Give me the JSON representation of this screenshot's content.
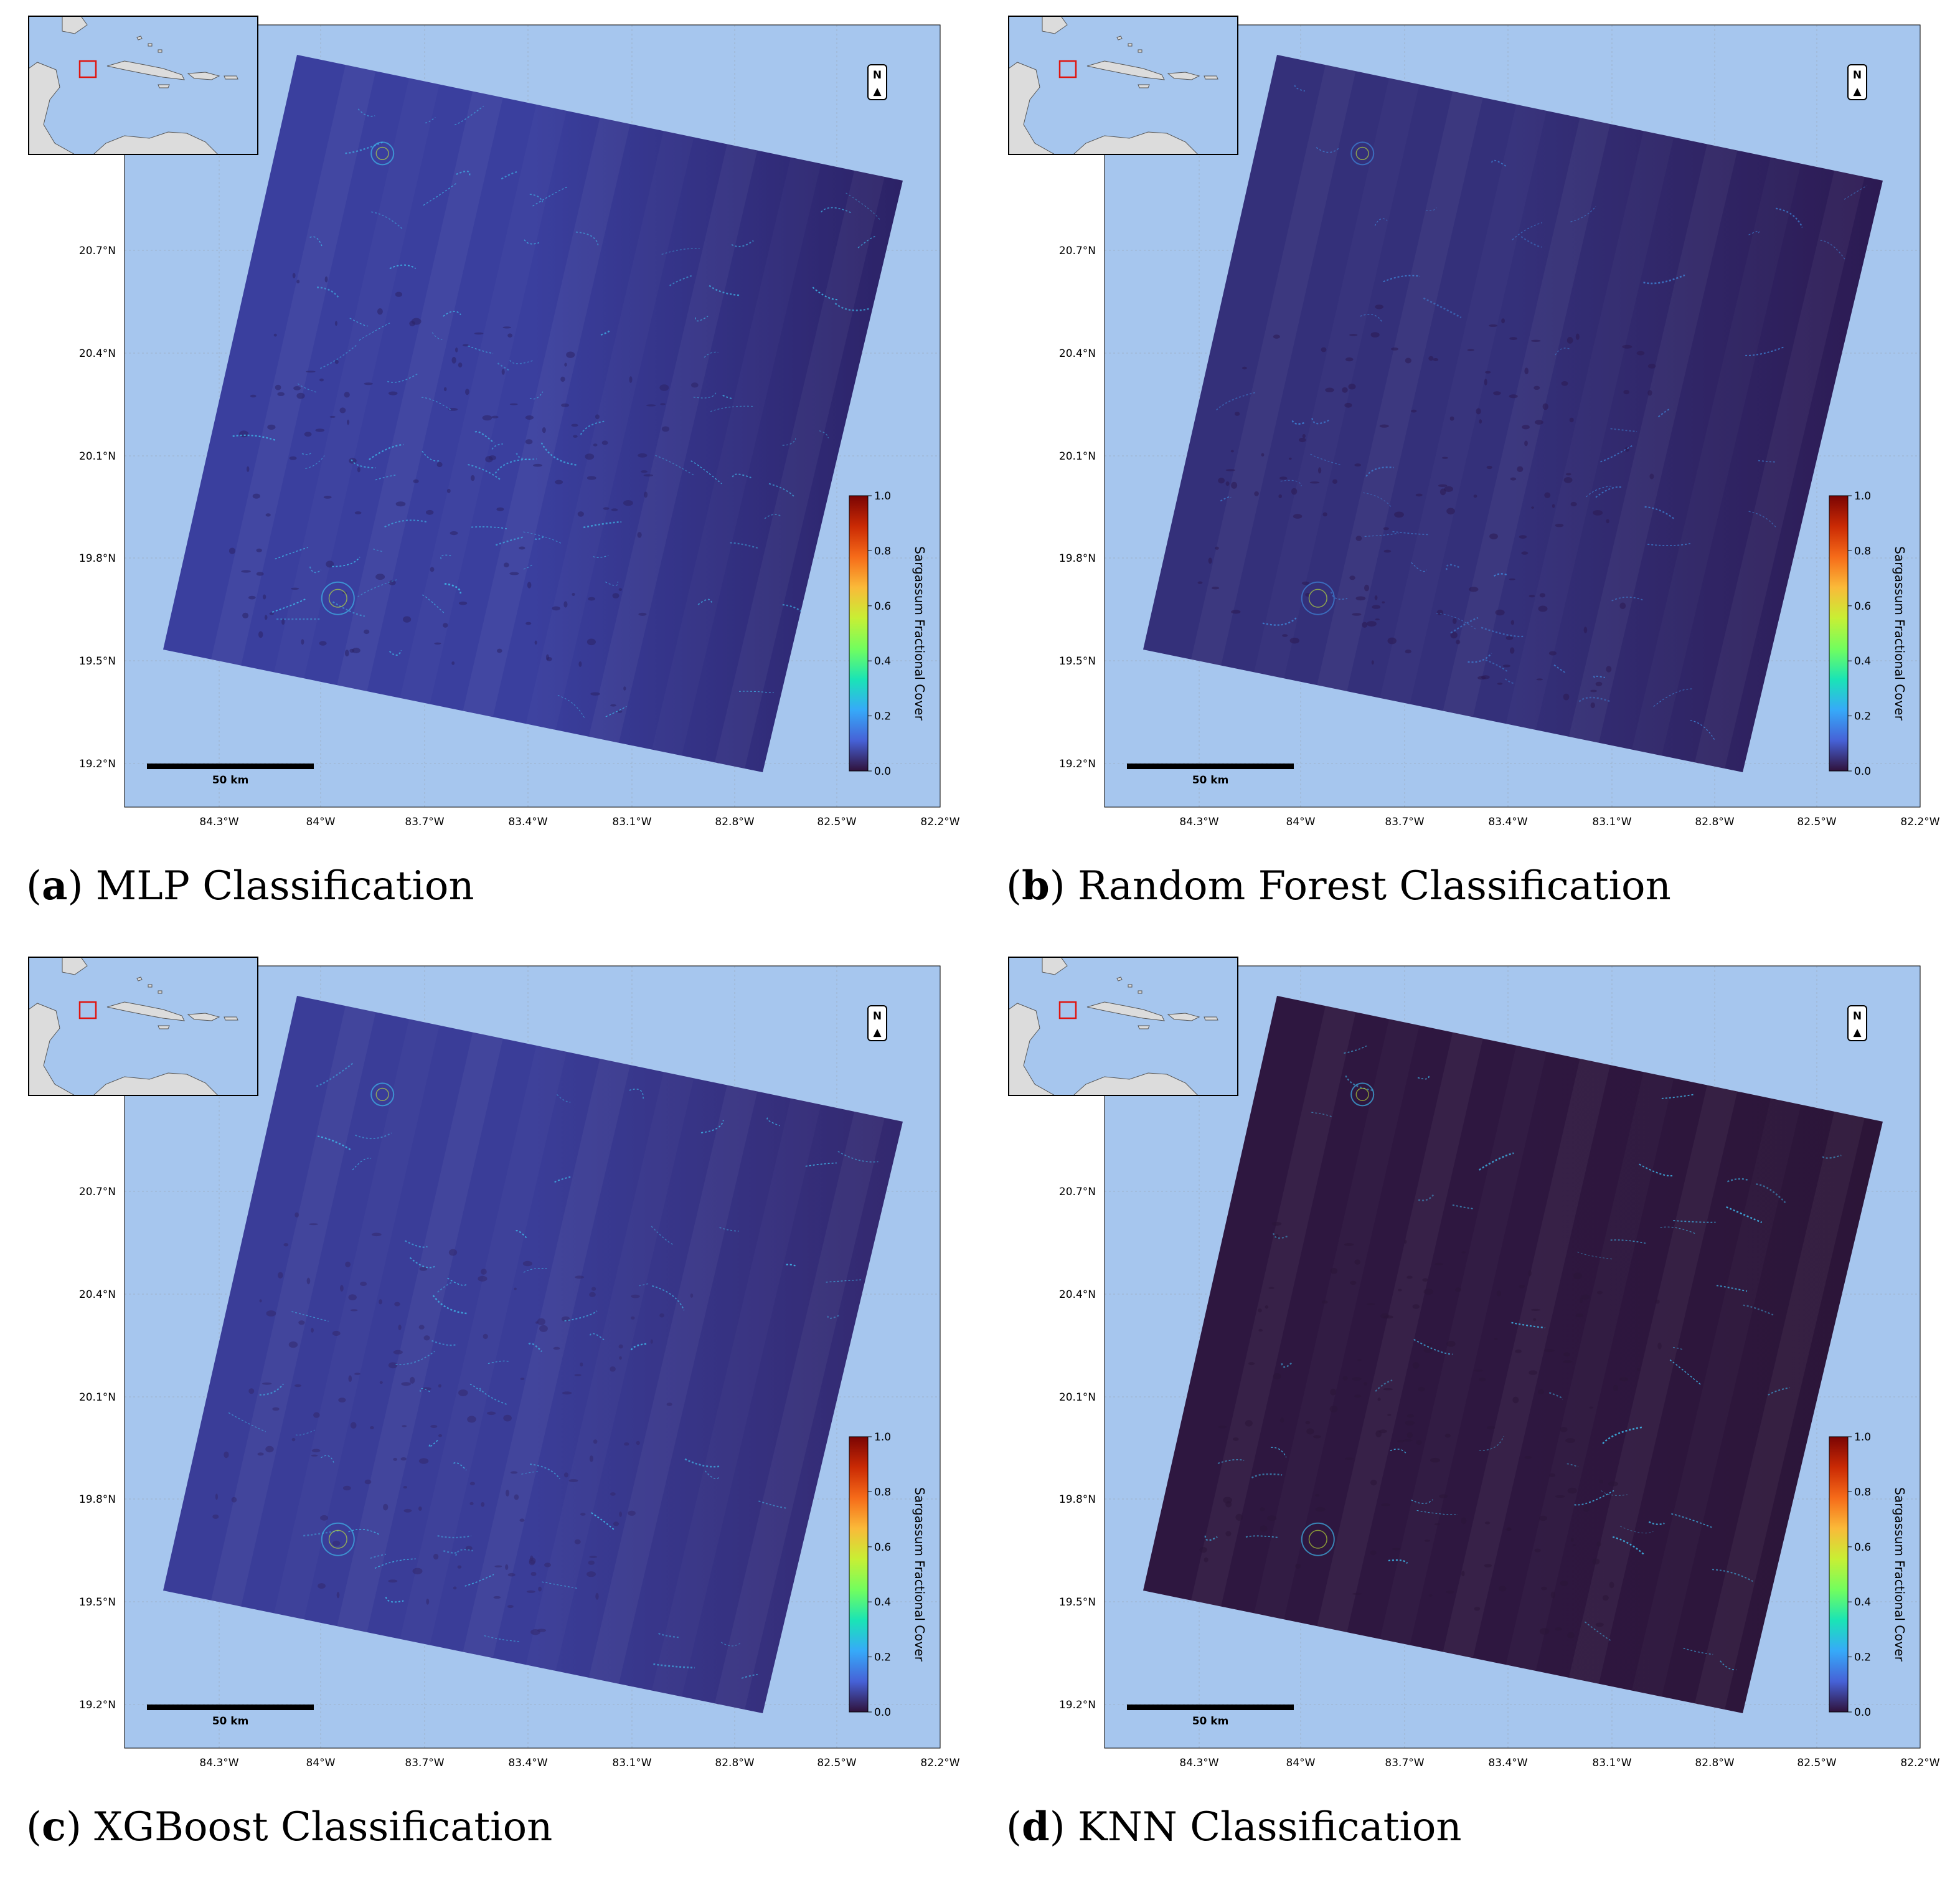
{
  "colormap": {
    "name": "turbo",
    "colors": [
      "#30123b",
      "#4662d7",
      "#36aaf9",
      "#1ae4b6",
      "#72fe5e",
      "#c8ef34",
      "#faba39",
      "#f66b19",
      "#ca2a04",
      "#7a0403"
    ]
  },
  "ocean_color": "#a6c6ee",
  "land_color": "#dcdcdc",
  "inset_box_color": "#e0140f",
  "panels": [
    {
      "letter": "a",
      "title": "MLP Classification",
      "scene_base": "#3a3f9e",
      "scene_dark": "#2c2266",
      "feature_color": "#3fb5e8",
      "feature_density": 1.0
    },
    {
      "letter": "b",
      "title": "Random Forest Classification",
      "scene_base": "#34307a",
      "scene_dark": "#2c1a52",
      "feature_color": "#3e85d8",
      "feature_density": 0.6
    },
    {
      "letter": "c",
      "title": "XGBoost Classification",
      "scene_base": "#3a3d98",
      "scene_dark": "#33286e",
      "feature_color": "#3fb5e8",
      "feature_density": 0.7
    },
    {
      "letter": "d",
      "title": "KNN Classification",
      "scene_base": "#2e1740",
      "scene_dark": "#2c1538",
      "feature_color": "#3fb5e8",
      "feature_density": 0.55
    }
  ],
  "axes": {
    "lon_ticks": [
      "84.3°W",
      "84°W",
      "83.7°W",
      "83.4°W",
      "83.1°W",
      "82.8°W",
      "82.5°W",
      "82.2°W"
    ],
    "lat_ticks": [
      "20.7°N",
      "20.4°N",
      "20.1°N",
      "19.8°N",
      "19.5°N",
      "19.2°N"
    ]
  },
  "colorbar": {
    "label": "Sargassum Fractional Cover",
    "ticks": [
      "1.0",
      "0.8",
      "0.6",
      "0.4",
      "0.2",
      "0.0"
    ],
    "range": [
      0.0,
      1.0
    ]
  },
  "scale_bar": {
    "label": "50 km"
  },
  "north_arrow": {
    "label": "N",
    "glyph": "▲"
  }
}
